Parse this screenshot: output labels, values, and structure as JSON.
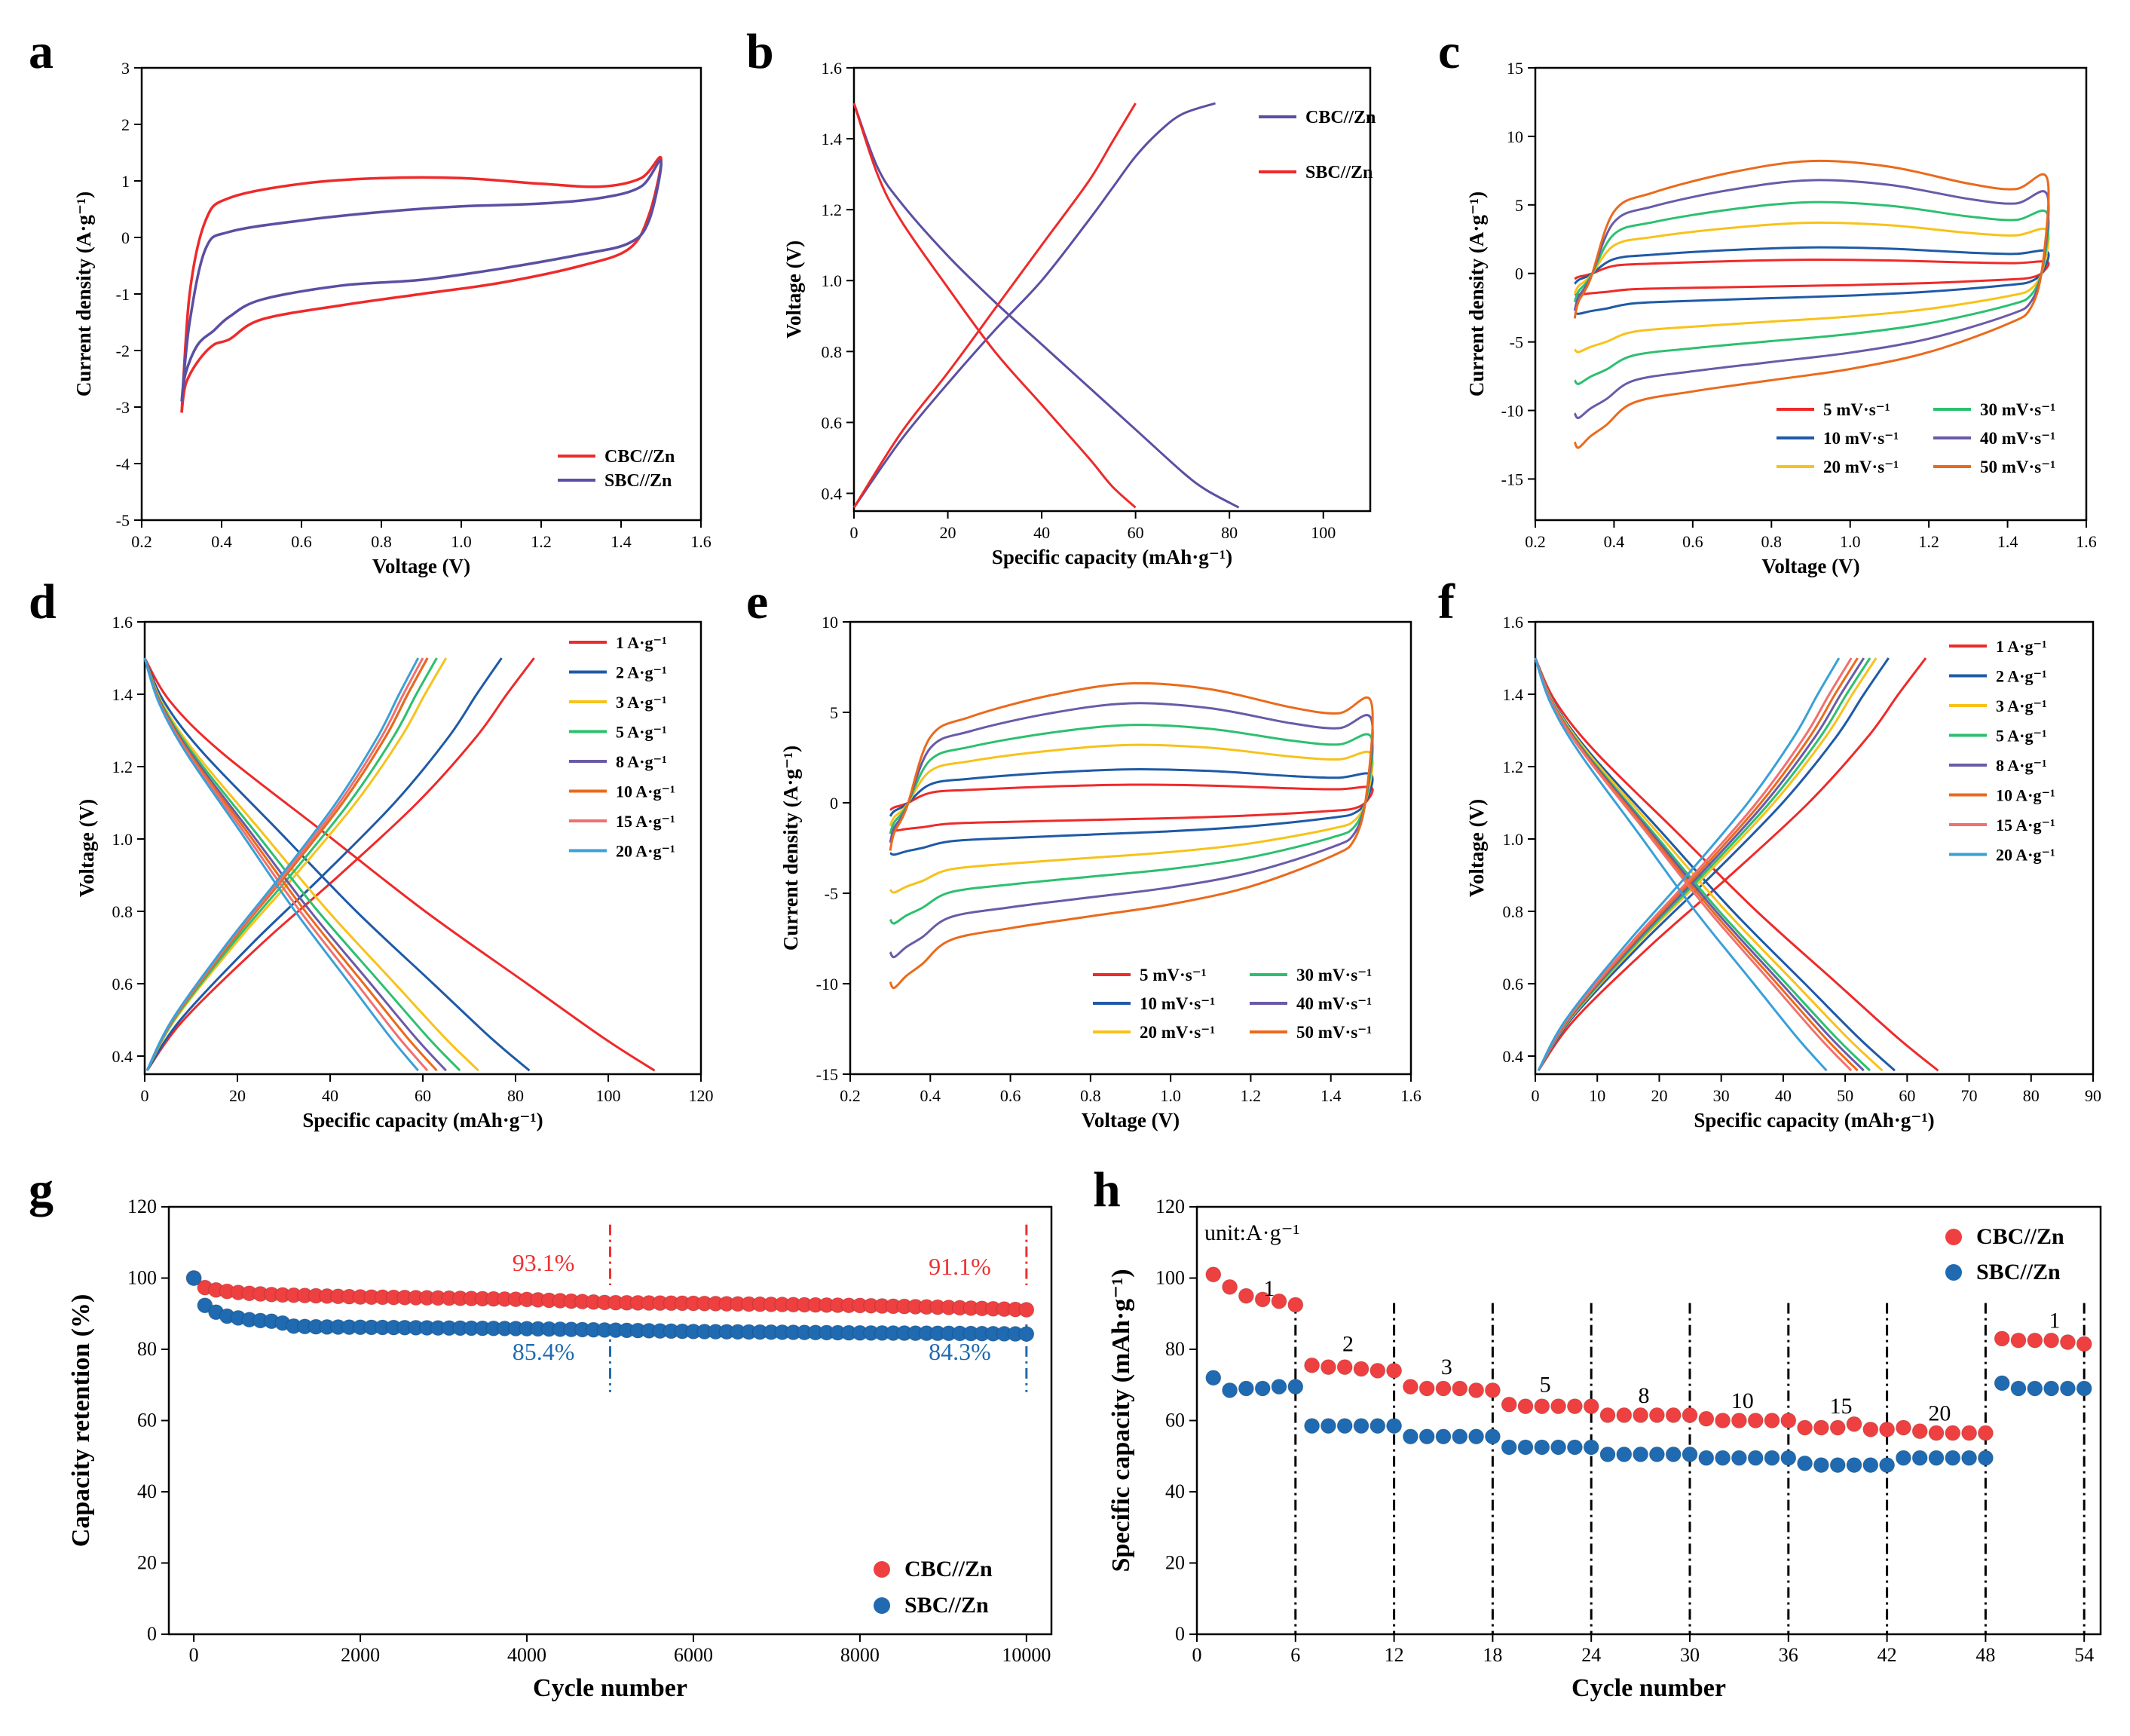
{
  "chart_data": [
    {
      "panel": "a",
      "type": "line",
      "xlabel": "Voltage (V)",
      "ylabel": "Current density (A·g⁻¹)",
      "xlim": [
        0.2,
        1.6
      ],
      "ylim": [
        -5,
        3
      ],
      "xticks": [
        0.2,
        0.4,
        0.6,
        0.8,
        1.0,
        1.2,
        1.4,
        1.6
      ],
      "yticks": [
        -5,
        -4,
        -3,
        -2,
        -1,
        0,
        1,
        2,
        3
      ],
      "legend": "bottom-right",
      "series": [
        {
          "name": "CBC//Zn",
          "color": "#ee2a2a",
          "x": [
            0.3,
            0.32,
            0.36,
            0.42,
            0.6,
            0.8,
            1.0,
            1.2,
            1.35,
            1.45,
            1.5,
            1.47,
            1.42,
            1.3,
            1.1,
            0.9,
            0.7,
            0.5,
            0.42,
            0.38,
            0.34,
            0.31,
            0.3
          ],
          "y": [
            -3.1,
            -1.0,
            0.3,
            0.7,
            0.95,
            1.05,
            1.05,
            0.95,
            0.9,
            1.05,
            1.4,
            0.4,
            -0.2,
            -0.5,
            -0.8,
            -1.0,
            -1.2,
            -1.45,
            -1.8,
            -1.9,
            -2.2,
            -2.6,
            -3.1
          ]
        },
        {
          "name": "SBC//Zn",
          "color": "#5b4fa3",
          "x": [
            0.3,
            0.32,
            0.36,
            0.42,
            0.6,
            0.8,
            1.0,
            1.2,
            1.35,
            1.45,
            1.5,
            1.47,
            1.42,
            1.3,
            1.1,
            0.9,
            0.7,
            0.5,
            0.42,
            0.38,
            0.34,
            0.31,
            0.3
          ],
          "y": [
            -2.9,
            -1.5,
            -0.2,
            0.1,
            0.3,
            0.45,
            0.55,
            0.6,
            0.7,
            0.9,
            1.35,
            0.3,
            -0.1,
            -0.3,
            -0.55,
            -0.75,
            -0.85,
            -1.1,
            -1.4,
            -1.65,
            -1.9,
            -2.4,
            -2.9
          ]
        }
      ]
    },
    {
      "panel": "b",
      "type": "line",
      "xlabel": "Specific capacity (mAh·g⁻¹)",
      "ylabel": "Voltage (V)",
      "xlim": [
        0,
        110
      ],
      "ylim": [
        0.35,
        1.6
      ],
      "xticks": [
        0,
        20,
        40,
        60,
        80,
        100
      ],
      "yticks": [
        0.4,
        0.6,
        0.8,
        1.0,
        1.2,
        1.4,
        1.6
      ],
      "legend": "top-right",
      "series": [
        {
          "name": "CBC//Zn",
          "color": "#5b4fa3",
          "charge": {
            "x": [
              0,
              10,
              20,
              30,
              40,
              50,
              55,
              60,
              65,
              70,
              77
            ],
            "y": [
              0.36,
              0.55,
              0.71,
              0.86,
              1.0,
              1.17,
              1.26,
              1.35,
              1.42,
              1.47,
              1.5
            ]
          },
          "discharge": {
            "x": [
              0,
              5,
              10,
              20,
              30,
              40,
              50,
              60,
              70,
              75,
              82
            ],
            "y": [
              1.5,
              1.32,
              1.22,
              1.07,
              0.94,
              0.82,
              0.7,
              0.58,
              0.46,
              0.41,
              0.36
            ]
          }
        },
        {
          "name": "SBC//Zn",
          "color": "#ee2a2a",
          "charge": {
            "x": [
              0,
              10,
              20,
              30,
              40,
              50,
              55,
              60
            ],
            "y": [
              0.36,
              0.57,
              0.74,
              0.92,
              1.1,
              1.28,
              1.39,
              1.5
            ]
          },
          "discharge": {
            "x": [
              0,
              5,
              10,
              20,
              30,
              40,
              50,
              55,
              60
            ],
            "y": [
              1.5,
              1.3,
              1.17,
              0.98,
              0.8,
              0.65,
              0.5,
              0.42,
              0.36
            ]
          }
        }
      ]
    },
    {
      "panel": "c",
      "type": "line",
      "xlabel": "Voltage (V)",
      "ylabel": "Current density (A·g⁻¹)",
      "xlim": [
        0.2,
        1.6
      ],
      "ylim": [
        -18,
        15
      ],
      "xticks": [
        0.2,
        0.4,
        0.6,
        0.8,
        1.0,
        1.2,
        1.4,
        1.6
      ],
      "yticks": [
        -15,
        -10,
        -5,
        0,
        5,
        10,
        15
      ],
      "legend": "bottom-right",
      "series": [
        {
          "name": "5 mV·s⁻¹",
          "color": "#ee2a2a",
          "scale": 1.0
        },
        {
          "name": "10 mV·s⁻¹",
          "color": "#1f5aa6",
          "scale": 1.9
        },
        {
          "name": "20 mV·s⁻¹",
          "color": "#f7c21a",
          "scale": 3.7
        },
        {
          "name": "30 mV·s⁻¹",
          "color": "#2cc06e",
          "scale": 5.2
        },
        {
          "name": "40 mV·s⁻¹",
          "color": "#6a5aa8",
          "scale": 6.8
        },
        {
          "name": "50 mV·s⁻¹",
          "color": "#ea6a1c",
          "scale": 8.2
        }
      ]
    },
    {
      "panel": "d",
      "type": "line",
      "xlabel": "Specific capacity (mAh·g⁻¹)",
      "ylabel": "Voltage (V)",
      "xlim": [
        0,
        120
      ],
      "ylim": [
        0.35,
        1.6
      ],
      "xticks": [
        0,
        20,
        40,
        60,
        80,
        100,
        120
      ],
      "yticks": [
        0.4,
        0.6,
        0.8,
        1.0,
        1.2,
        1.4,
        1.6
      ],
      "legend": "top-right",
      "series": [
        {
          "name": "1 A·g⁻¹",
          "color": "#ee2a2a",
          "charge_cap": 84,
          "discharge_cap": 110
        },
        {
          "name": "2 A·g⁻¹",
          "color": "#1f5aa6",
          "charge_cap": 77,
          "discharge_cap": 83
        },
        {
          "name": "3 A·g⁻¹",
          "color": "#f7c21a",
          "charge_cap": 65,
          "discharge_cap": 72
        },
        {
          "name": "5 A·g⁻¹",
          "color": "#2cc06e",
          "charge_cap": 63,
          "discharge_cap": 68
        },
        {
          "name": "8 A·g⁻¹",
          "color": "#6a5aa8",
          "charge_cap": 61,
          "discharge_cap": 65
        },
        {
          "name": "10 A·g⁻¹",
          "color": "#ea6a1c",
          "charge_cap": 61,
          "discharge_cap": 63
        },
        {
          "name": "15 A·g⁻¹",
          "color": "#f07070",
          "charge_cap": 60,
          "discharge_cap": 61
        },
        {
          "name": "20 A·g⁻¹",
          "color": "#3aa0d8",
          "charge_cap": 59,
          "discharge_cap": 59
        }
      ]
    },
    {
      "panel": "e",
      "type": "line",
      "xlabel": "Voltage (V)",
      "ylabel": "Current density (A·g⁻¹)",
      "xlim": [
        0.2,
        1.6
      ],
      "ylim": [
        -15,
        10
      ],
      "xticks": [
        0.2,
        0.4,
        0.6,
        0.8,
        1.0,
        1.2,
        1.4,
        1.6
      ],
      "yticks": [
        -15,
        -10,
        -5,
        0,
        5,
        10
      ],
      "legend": "bottom-right",
      "series": [
        {
          "name": "5 mV·s⁻¹",
          "color": "#ee2a2a",
          "scale": 1.0
        },
        {
          "name": "10 mV·s⁻¹",
          "color": "#1f5aa6",
          "scale": 1.85
        },
        {
          "name": "20 mV·s⁻¹",
          "color": "#f7c21a",
          "scale": 3.2
        },
        {
          "name": "30 mV·s⁻¹",
          "color": "#2cc06e",
          "scale": 4.3
        },
        {
          "name": "40 mV·s⁻¹",
          "color": "#6a5aa8",
          "scale": 5.5
        },
        {
          "name": "50 mV·s⁻¹",
          "color": "#ea6a1c",
          "scale": 6.6
        }
      ]
    },
    {
      "panel": "f",
      "type": "line",
      "xlabel": "Specific capacity (mAh·g⁻¹)",
      "ylabel": "Voltage (V)",
      "xlim": [
        0,
        90
      ],
      "ylim": [
        0.35,
        1.6
      ],
      "xticks": [
        0,
        10,
        20,
        30,
        40,
        50,
        60,
        70,
        80,
        90
      ],
      "yticks": [
        0.4,
        0.6,
        0.8,
        1.0,
        1.2,
        1.4,
        1.6
      ],
      "legend": "top-right",
      "series": [
        {
          "name": "1 A·g⁻¹",
          "color": "#ee2a2a",
          "charge_cap": 63,
          "discharge_cap": 65
        },
        {
          "name": "2 A·g⁻¹",
          "color": "#1f5aa6",
          "charge_cap": 57,
          "discharge_cap": 58
        },
        {
          "name": "3 A·g⁻¹",
          "color": "#f7c21a",
          "charge_cap": 55,
          "discharge_cap": 56
        },
        {
          "name": "5 A·g⁻¹",
          "color": "#2cc06e",
          "charge_cap": 54,
          "discharge_cap": 54
        },
        {
          "name": "8 A·g⁻¹",
          "color": "#6a5aa8",
          "charge_cap": 53,
          "discharge_cap": 53
        },
        {
          "name": "10 A·g⁻¹",
          "color": "#ea6a1c",
          "charge_cap": 52,
          "discharge_cap": 52
        },
        {
          "name": "15 A·g⁻¹",
          "color": "#f07070",
          "charge_cap": 51,
          "discharge_cap": 51
        },
        {
          "name": "20 A·g⁻¹",
          "color": "#3aa0d8",
          "charge_cap": 49,
          "discharge_cap": 47
        }
      ]
    },
    {
      "panel": "g",
      "type": "scatter",
      "xlabel": "Cycle number",
      "ylabel": "Capacity retention (%)",
      "xlim": [
        -300,
        10300
      ],
      "ylim": [
        0,
        120
      ],
      "xticks": [
        0,
        2000,
        4000,
        6000,
        8000,
        10000
      ],
      "yticks": [
        0,
        20,
        40,
        60,
        80,
        100,
        120
      ],
      "legend": "bottom-right",
      "markers": [
        5000,
        10000
      ],
      "annotations": [
        {
          "text": "93.1%",
          "x": 4200,
          "y": 102,
          "color": "#ee3030"
        },
        {
          "text": "91.1%",
          "x": 9200,
          "y": 101,
          "color": "#ee3030"
        },
        {
          "text": "85.4%",
          "x": 4200,
          "y": 77,
          "color": "#1f6ab0"
        },
        {
          "text": "84.3%",
          "x": 9200,
          "y": 77,
          "color": "#1f6ab0"
        }
      ],
      "series": [
        {
          "name": "CBC//Zn",
          "color": "#ee4040",
          "x": [
            0,
            100,
            300,
            600,
            1000,
            1500,
            2000,
            3000,
            4000,
            5000,
            6000,
            7000,
            8000,
            9000,
            10000
          ],
          "y": [
            100,
            97.5,
            96.5,
            95.8,
            95.3,
            95.0,
            94.7,
            94.4,
            94.0,
            93.1,
            92.9,
            92.6,
            92.3,
            91.8,
            91.1
          ]
        },
        {
          "name": "SBC//Zn",
          "color": "#1f6ab0",
          "x": [
            0,
            100,
            200,
            400,
            700,
            1000,
            1200,
            1500,
            2000,
            3000,
            4000,
            5000,
            6000,
            7000,
            8000,
            9000,
            10000
          ],
          "y": [
            100,
            93,
            91,
            89.3,
            88.2,
            87.8,
            86.5,
            86.3,
            86.2,
            86.0,
            85.8,
            85.4,
            85.0,
            84.8,
            84.6,
            84.5,
            84.3
          ]
        }
      ]
    },
    {
      "panel": "h",
      "type": "scatter",
      "xlabel": "Cycle number",
      "ylabel": "Specific capacity (mAh·g⁻¹)",
      "xlim": [
        0,
        55
      ],
      "ylim": [
        0,
        120
      ],
      "xticks": [
        0,
        6,
        12,
        18,
        24,
        30,
        36,
        42,
        48,
        54
      ],
      "yticks": [
        0,
        20,
        40,
        60,
        80,
        100,
        120
      ],
      "legend": "top-right",
      "unit_label": "unit:A·g⁻¹",
      "rate_labels": [
        {
          "text": "1",
          "x": 4.4,
          "y": 95
        },
        {
          "text": "2",
          "x": 9.2,
          "y": 79.5
        },
        {
          "text": "3",
          "x": 15.2,
          "y": 73
        },
        {
          "text": "5",
          "x": 21.2,
          "y": 68
        },
        {
          "text": "8",
          "x": 27.2,
          "y": 65
        },
        {
          "text": "10",
          "x": 33.2,
          "y": 63.5
        },
        {
          "text": "15",
          "x": 39.2,
          "y": 62
        },
        {
          "text": "20",
          "x": 45.2,
          "y": 60
        },
        {
          "text": "1",
          "x": 52.2,
          "y": 86
        }
      ],
      "dividers": [
        6,
        12,
        18,
        24,
        30,
        36,
        42,
        48,
        54
      ],
      "series": [
        {
          "name": "CBC//Zn",
          "color": "#ee4040",
          "x": [
            1,
            2,
            3,
            4,
            5,
            6,
            7,
            8,
            9,
            10,
            11,
            12,
            13,
            14,
            15,
            16,
            17,
            18,
            19,
            20,
            21,
            22,
            23,
            24,
            25,
            26,
            27,
            28,
            29,
            30,
            31,
            32,
            33,
            34,
            35,
            36,
            37,
            38,
            39,
            40,
            41,
            42,
            43,
            44,
            45,
            46,
            47,
            48,
            49,
            50,
            51,
            52,
            53,
            54
          ],
          "y": [
            101,
            97.5,
            95,
            94,
            93.5,
            92.5,
            75.5,
            75,
            75,
            74.5,
            74,
            74,
            69.5,
            69,
            69,
            69,
            68.5,
            68.5,
            64.5,
            64,
            64,
            64,
            64,
            64,
            61.5,
            61.5,
            61.5,
            61.5,
            61.5,
            61.5,
            60.5,
            60,
            60,
            60,
            60,
            60,
            58,
            58,
            58,
            59,
            57.5,
            57.5,
            58,
            57,
            56.5,
            56.5,
            56.5,
            56.5,
            83,
            82.5,
            82.5,
            82.5,
            82,
            81.5
          ]
        },
        {
          "name": "SBC//Zn",
          "color": "#1f6ab0",
          "x": [
            1,
            2,
            3,
            4,
            5,
            6,
            7,
            8,
            9,
            10,
            11,
            12,
            13,
            14,
            15,
            16,
            17,
            18,
            19,
            20,
            21,
            22,
            23,
            24,
            25,
            26,
            27,
            28,
            29,
            30,
            31,
            32,
            33,
            34,
            35,
            36,
            37,
            38,
            39,
            40,
            41,
            42,
            43,
            44,
            45,
            46,
            47,
            48,
            49,
            50,
            51,
            52,
            53,
            54
          ],
          "y": [
            72,
            68.5,
            69,
            69,
            69.5,
            69.5,
            58.5,
            58.5,
            58.5,
            58.5,
            58.5,
            58.5,
            55.5,
            55.5,
            55.5,
            55.5,
            55.5,
            55.5,
            52.5,
            52.5,
            52.5,
            52.5,
            52.5,
            52.5,
            50.5,
            50.5,
            50.5,
            50.5,
            50.5,
            50.5,
            49.5,
            49.5,
            49.5,
            49.5,
            49.5,
            49.5,
            48,
            47.5,
            47.5,
            47.5,
            47.5,
            47.5,
            49.5,
            49.5,
            49.5,
            49.5,
            49.5,
            49.5,
            70.5,
            69,
            69,
            69,
            69,
            69
          ]
        }
      ]
    }
  ]
}
